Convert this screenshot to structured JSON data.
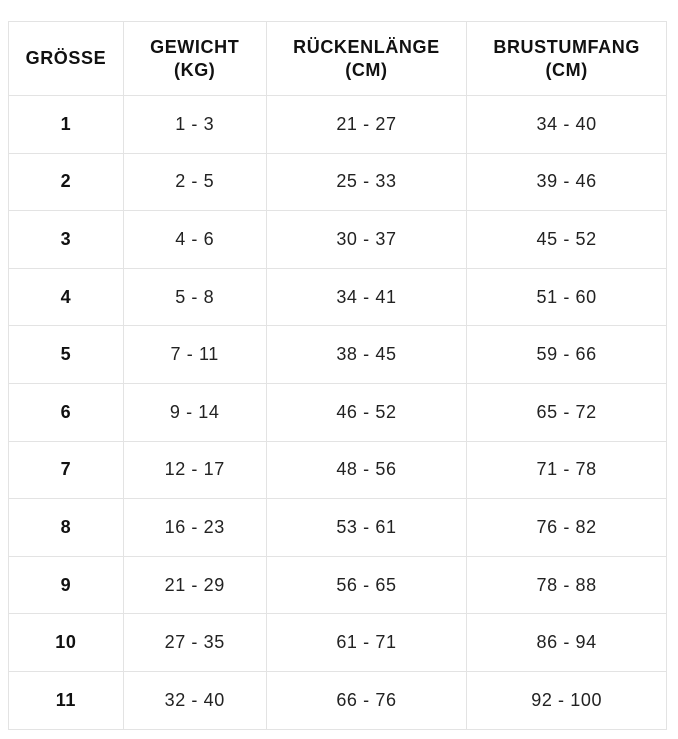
{
  "page": {
    "background_color": "#ffffff",
    "text_color": "#1d1d1d",
    "border_color": "#e3e3e3"
  },
  "table": {
    "columns": [
      {
        "label": "GRÖSSE",
        "unit": ""
      },
      {
        "label": "GEWICHT",
        "unit": "(KG)"
      },
      {
        "label": "RÜCKENLÄNGE",
        "unit": "(CM)"
      },
      {
        "label": "BRUSTUMFANG",
        "unit": "(CM)"
      }
    ],
    "rows": [
      {
        "size": "1",
        "weight_kg": "1 - 3",
        "back_length_cm": "21 - 27",
        "chest_cm": "34 - 40"
      },
      {
        "size": "2",
        "weight_kg": "2 - 5",
        "back_length_cm": "25 - 33",
        "chest_cm": "39 - 46"
      },
      {
        "size": "3",
        "weight_kg": "4 - 6",
        "back_length_cm": "30 - 37",
        "chest_cm": "45 - 52"
      },
      {
        "size": "4",
        "weight_kg": "5 - 8",
        "back_length_cm": "34 - 41",
        "chest_cm": "51 - 60"
      },
      {
        "size": "5",
        "weight_kg": "7 - 11",
        "back_length_cm": "38 - 45",
        "chest_cm": "59 - 66"
      },
      {
        "size": "6",
        "weight_kg": "9 - 14",
        "back_length_cm": "46 - 52",
        "chest_cm": "65 - 72"
      },
      {
        "size": "7",
        "weight_kg": "12 - 17",
        "back_length_cm": "48 - 56",
        "chest_cm": "71 - 78"
      },
      {
        "size": "8",
        "weight_kg": "16 - 23",
        "back_length_cm": "53 - 61",
        "chest_cm": "76 - 82"
      },
      {
        "size": "9",
        "weight_kg": "21 - 29",
        "back_length_cm": "56 - 65",
        "chest_cm": "78 - 88"
      },
      {
        "size": "10",
        "weight_kg": "27 - 35",
        "back_length_cm": "61 - 71",
        "chest_cm": "86 - 94"
      },
      {
        "size": "11",
        "weight_kg": "32 - 40",
        "back_length_cm": "66 - 76",
        "chest_cm": "92 - 100"
      }
    ]
  },
  "chart_data": {
    "type": "table",
    "title": "",
    "columns": [
      "GRÖSSE",
      "GEWICHT (KG)",
      "RÜCKENLÄNGE (CM)",
      "BRUSTUMFANG (CM)"
    ],
    "rows": [
      [
        "1",
        "1 - 3",
        "21 - 27",
        "34 - 40"
      ],
      [
        "2",
        "2 - 5",
        "25 - 33",
        "39 - 46"
      ],
      [
        "3",
        "4 - 6",
        "30 - 37",
        "45 - 52"
      ],
      [
        "4",
        "5 - 8",
        "34 - 41",
        "51 - 60"
      ],
      [
        "5",
        "7 - 11",
        "38 - 45",
        "59 - 66"
      ],
      [
        "6",
        "9 - 14",
        "46 - 52",
        "65 - 72"
      ],
      [
        "7",
        "12 - 17",
        "48 - 56",
        "71 - 78"
      ],
      [
        "8",
        "16 - 23",
        "53 - 61",
        "76 - 82"
      ],
      [
        "9",
        "21 - 29",
        "56 - 65",
        "78 - 88"
      ],
      [
        "10",
        "27 - 35",
        "61 - 71",
        "86 - 94"
      ],
      [
        "11",
        "32 - 40",
        "66 - 76",
        "92 - 100"
      ]
    ],
    "layout": {
      "grid": true,
      "header_bold": true,
      "first_column_bold": true
    }
  }
}
